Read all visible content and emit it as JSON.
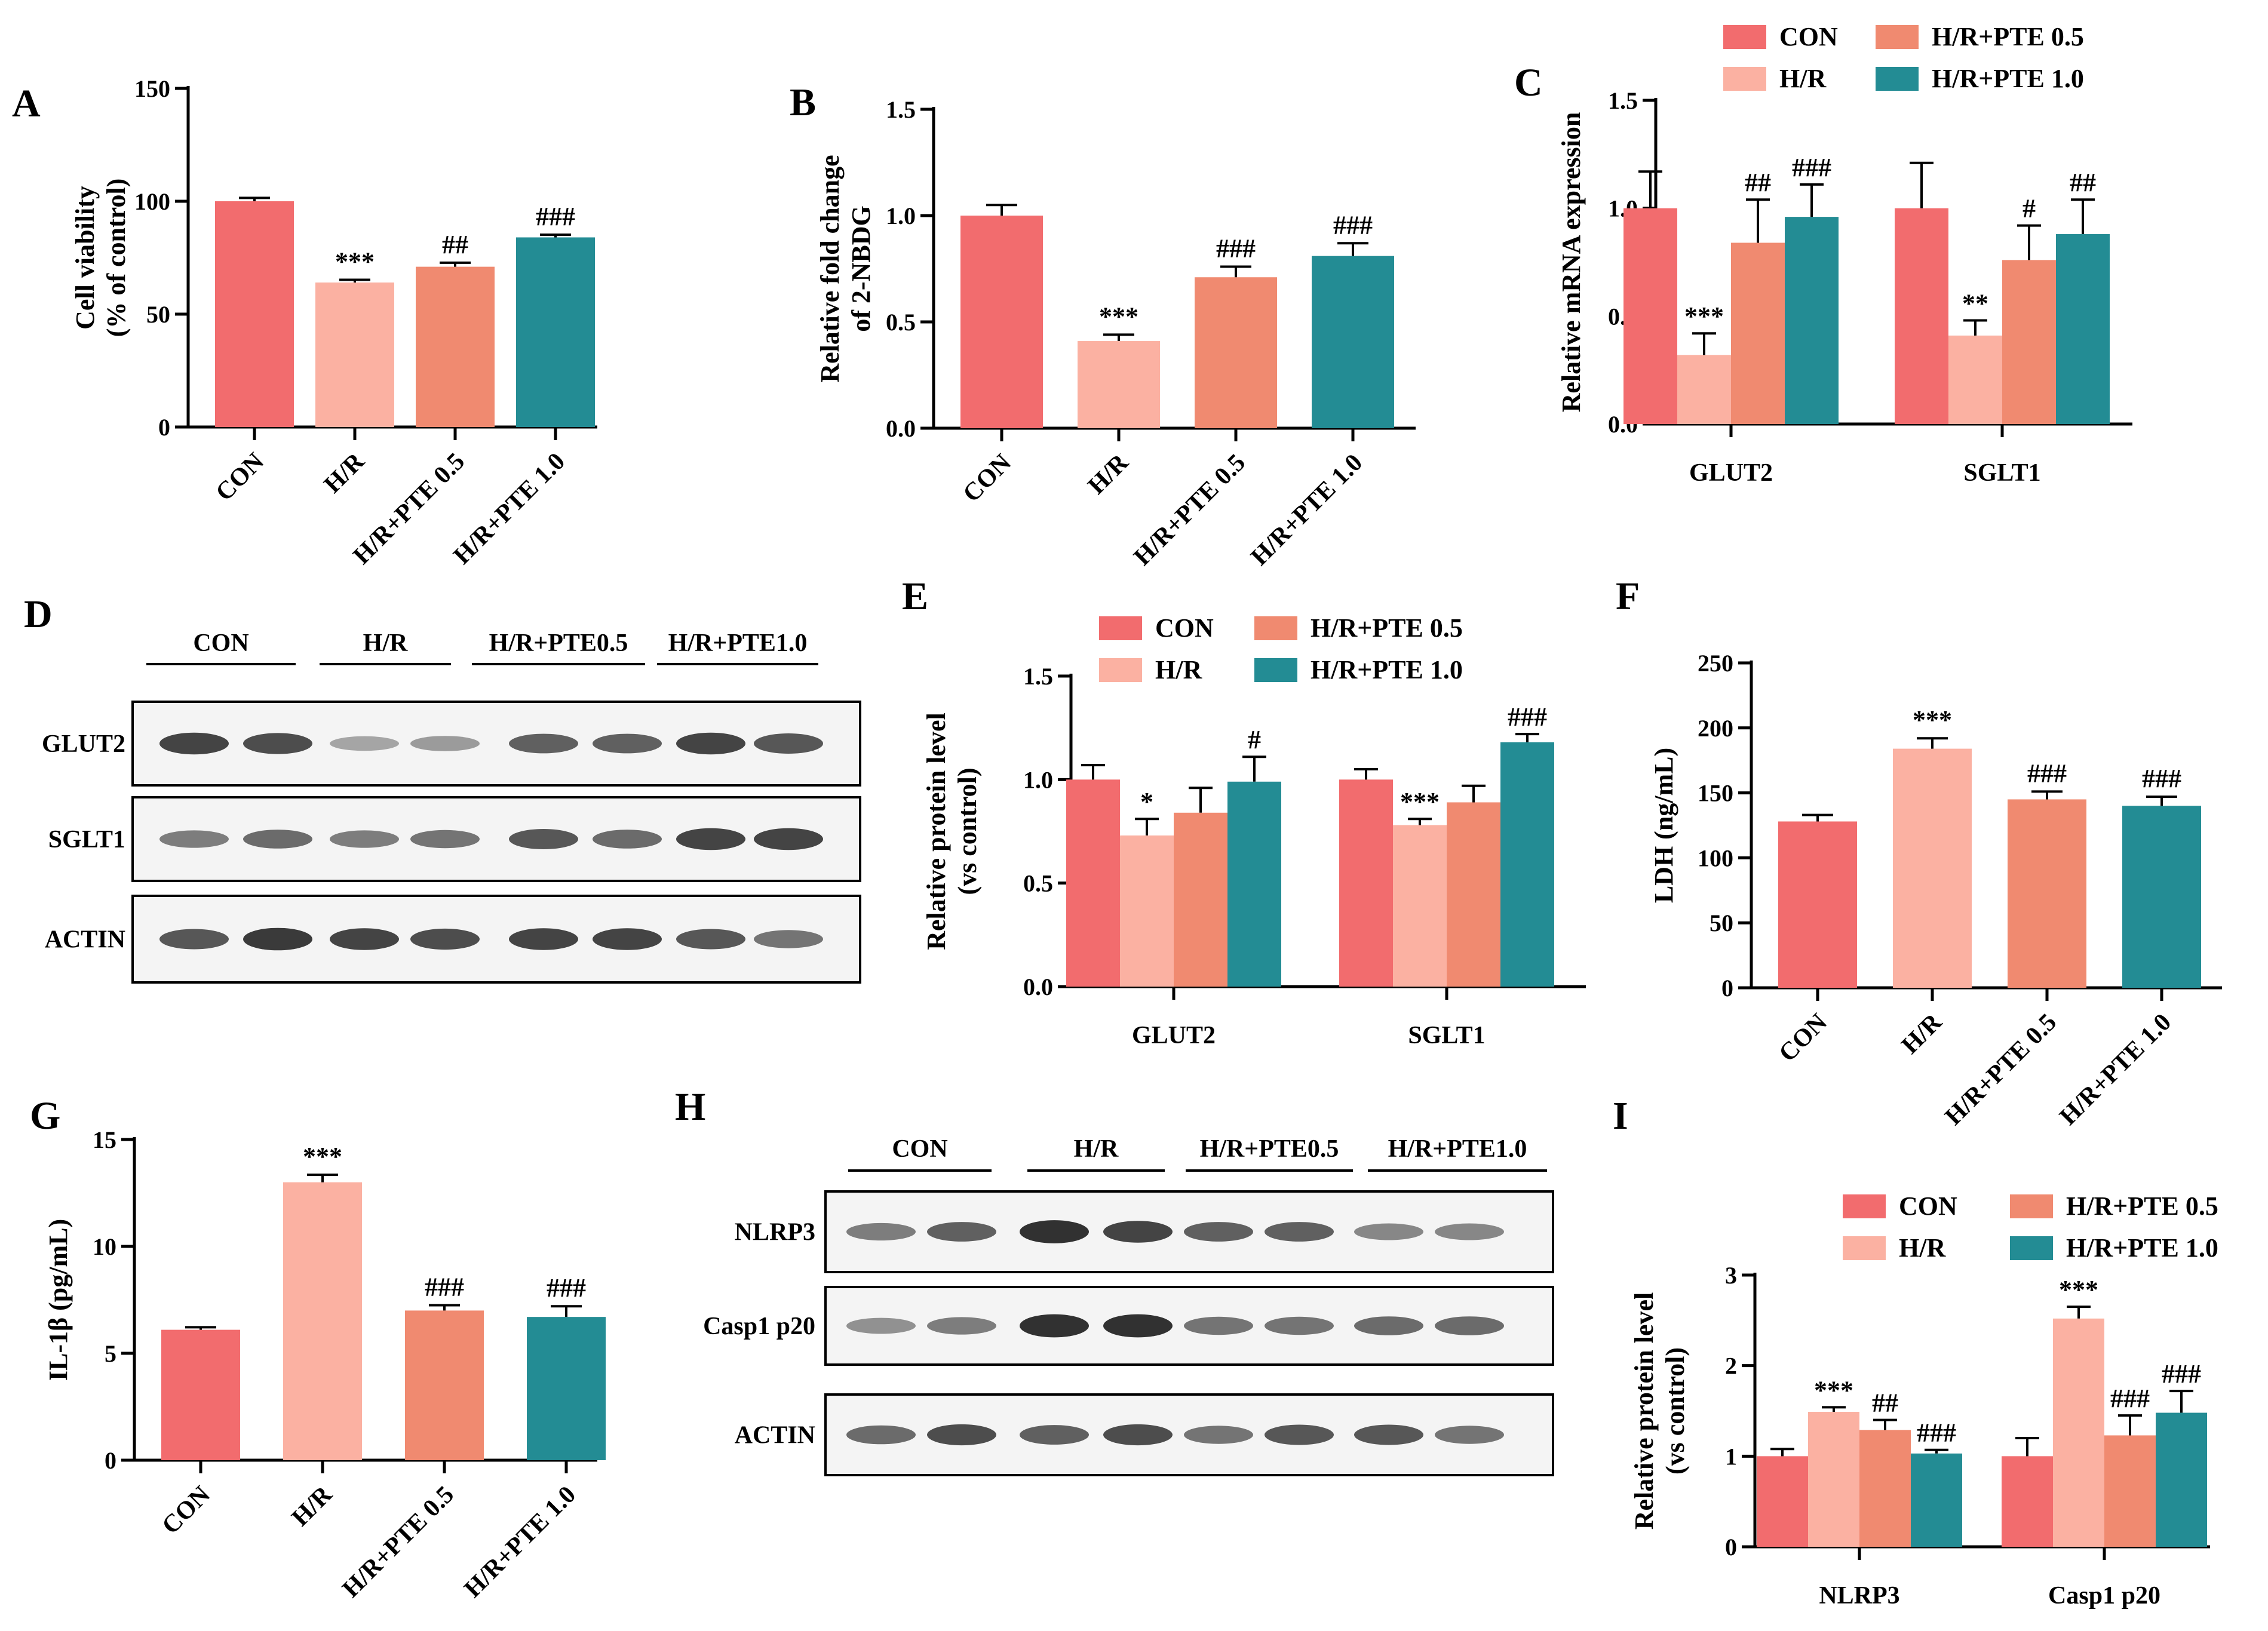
{
  "colors": {
    "CON": "#f26c6e",
    "H/R": "#fbb1a2",
    "H/R+PTE 0.5": "#f08a70",
    "H/R+PTE 1.0": "#238c94"
  },
  "chart_data": [
    {
      "id": "A",
      "type": "bar",
      "panel_label": "A",
      "categories": [
        "CON",
        "H/R",
        "H/R+PTE 0.5",
        "H/R+PTE 1.0"
      ],
      "values": [
        100,
        64,
        71,
        84
      ],
      "errors": [
        1.5,
        1.2,
        1.8,
        1.2
      ],
      "annotations": [
        "",
        "***",
        "##",
        "###"
      ],
      "ylabel_lines": [
        "Cell viability",
        "(% of control)"
      ],
      "ylim": [
        0,
        150
      ],
      "yticks": [
        "0",
        "50",
        "100",
        "150"
      ]
    },
    {
      "id": "B",
      "type": "bar",
      "panel_label": "B",
      "categories": [
        "CON",
        "H/R",
        "H/R+PTE 0.5",
        "H/R+PTE 1.0"
      ],
      "values": [
        1.0,
        0.41,
        0.71,
        0.81
      ],
      "errors": [
        0.05,
        0.03,
        0.05,
        0.06
      ],
      "annotations": [
        "",
        "***",
        "###",
        "###"
      ],
      "ylabel_lines": [
        "Relative fold change",
        "of 2-NBDG"
      ],
      "ylim": [
        0,
        1.5
      ],
      "yticks": [
        "0.0",
        "0.5",
        "1.0",
        "1.5"
      ]
    },
    {
      "id": "C",
      "type": "bar",
      "panel_label": "C",
      "categories": [
        "GLUT2",
        "SGLT1"
      ],
      "series": [
        {
          "name": "CON",
          "values": [
            1.0,
            1.0
          ],
          "errors": [
            0.17,
            0.21
          ],
          "annotations": [
            "",
            ""
          ]
        },
        {
          "name": "H/R",
          "values": [
            0.32,
            0.41
          ],
          "errors": [
            0.1,
            0.07
          ],
          "annotations": [
            "***",
            "**"
          ]
        },
        {
          "name": "H/R+PTE 0.5",
          "values": [
            0.84,
            0.76
          ],
          "errors": [
            0.2,
            0.16
          ],
          "annotations": [
            "##",
            "#"
          ]
        },
        {
          "name": "H/R+PTE 1.0",
          "values": [
            0.96,
            0.88
          ],
          "errors": [
            0.15,
            0.16
          ],
          "annotations": [
            "###",
            "##"
          ]
        }
      ],
      "ylabel_lines": [
        "Relative mRNA expression"
      ],
      "ylim": [
        0,
        1.5
      ],
      "yticks": [
        "0.0",
        "0.5",
        "1.0",
        "1.5"
      ],
      "legend": [
        "CON",
        "H/R",
        "H/R+PTE 0.5",
        "H/R+PTE 1.0"
      ]
    },
    {
      "id": "E",
      "type": "bar",
      "panel_label": "E",
      "categories": [
        "GLUT2",
        "SGLT1"
      ],
      "series": [
        {
          "name": "CON",
          "values": [
            1.0,
            1.0
          ],
          "errors": [
            0.07,
            0.05
          ],
          "annotations": [
            "",
            ""
          ]
        },
        {
          "name": "H/R",
          "values": [
            0.73,
            0.78
          ],
          "errors": [
            0.08,
            0.03
          ],
          "annotations": [
            "*",
            "***"
          ]
        },
        {
          "name": "H/R+PTE 0.5",
          "values": [
            0.84,
            0.89
          ],
          "errors": [
            0.12,
            0.08
          ],
          "annotations": [
            "",
            ""
          ]
        },
        {
          "name": "H/R+PTE 1.0",
          "values": [
            0.99,
            1.18
          ],
          "errors": [
            0.12,
            0.04
          ],
          "annotations": [
            "#",
            "###"
          ]
        }
      ],
      "ylabel_lines": [
        "Relative protein level",
        "(vs control)"
      ],
      "ylim": [
        0,
        1.5
      ],
      "yticks": [
        "0.0",
        "0.5",
        "1.0",
        "1.5"
      ],
      "legend": [
        "CON",
        "H/R",
        "H/R+PTE 0.5",
        "H/R+PTE 1.0"
      ]
    },
    {
      "id": "F",
      "type": "bar",
      "panel_label": "F",
      "categories": [
        "CON",
        "H/R",
        "H/R+PTE 0.5",
        "H/R+PTE 1.0"
      ],
      "values": [
        128,
        184,
        145,
        140
      ],
      "errors": [
        5,
        8,
        6,
        7
      ],
      "annotations": [
        "",
        "***",
        "###",
        "###"
      ],
      "ylabel_lines": [
        "LDH (ng/mL)"
      ],
      "ylim": [
        0,
        250
      ],
      "yticks": [
        "0",
        "50",
        "100",
        "150",
        "200",
        "250"
      ]
    },
    {
      "id": "G",
      "type": "bar",
      "panel_label": "G",
      "categories": [
        "CON",
        "H/R",
        "H/R+PTE 0.5",
        "H/R+PTE 1.0"
      ],
      "values": [
        6.1,
        13.0,
        7.0,
        6.7
      ],
      "errors": [
        0.12,
        0.35,
        0.25,
        0.5
      ],
      "annotations": [
        "",
        "***",
        "###",
        "###"
      ],
      "ylabel_lines": [
        "IL-1β (pg/mL)"
      ],
      "ylim": [
        0,
        15
      ],
      "yticks": [
        "0",
        "5",
        "10",
        "15"
      ]
    },
    {
      "id": "I",
      "type": "bar",
      "panel_label": "I",
      "categories": [
        "NLRP3",
        "Casp1 p20"
      ],
      "series": [
        {
          "name": "CON",
          "values": [
            1.0,
            1.0
          ],
          "errors": [
            0.08,
            0.2
          ],
          "annotations": [
            "",
            ""
          ]
        },
        {
          "name": "H/R",
          "values": [
            1.49,
            2.52
          ],
          "errors": [
            0.05,
            0.13
          ],
          "annotations": [
            "***",
            "***"
          ]
        },
        {
          "name": "H/R+PTE 0.5",
          "values": [
            1.29,
            1.23
          ],
          "errors": [
            0.11,
            0.22
          ],
          "annotations": [
            "##",
            "###"
          ]
        },
        {
          "name": "H/R+PTE 1.0",
          "values": [
            1.03,
            1.48
          ],
          "errors": [
            0.04,
            0.24
          ],
          "annotations": [
            "###",
            "###"
          ]
        }
      ],
      "ylabel_lines": [
        "Relative protein level",
        "(vs control)"
      ],
      "ylim": [
        0,
        3
      ],
      "yticks": [
        "0",
        "1",
        "2",
        "3"
      ],
      "legend": [
        "CON",
        "H/R",
        "H/R+PTE 0.5",
        "H/R+PTE 1.0"
      ]
    }
  ],
  "blots": [
    {
      "id": "D",
      "panel_label": "D",
      "groups": [
        "CON",
        "H/R",
        "H/R+PTE0.5",
        "H/R+PTE1.0"
      ],
      "rows": [
        {
          "label": "GLUT2",
          "intensity": [
            0.85,
            0.8,
            0.35,
            0.4,
            0.7,
            0.7,
            0.85,
            0.75
          ]
        },
        {
          "label": "SGLT1",
          "intensity": [
            0.55,
            0.65,
            0.55,
            0.6,
            0.75,
            0.65,
            0.85,
            0.85
          ]
        },
        {
          "label": "ACTIN",
          "intensity": [
            0.75,
            0.9,
            0.85,
            0.8,
            0.85,
            0.85,
            0.75,
            0.6
          ]
        }
      ]
    },
    {
      "id": "H",
      "panel_label": "H",
      "groups": [
        "CON",
        "H/R",
        "H/R+PTE0.5",
        "H/R+PTE1.0"
      ],
      "rows": [
        {
          "label": "NLRP3",
          "intensity": [
            0.55,
            0.7,
            0.95,
            0.85,
            0.7,
            0.7,
            0.5,
            0.5
          ]
        },
        {
          "label": "Casp1 p20",
          "intensity": [
            0.45,
            0.55,
            0.95,
            0.95,
            0.6,
            0.6,
            0.65,
            0.65
          ]
        },
        {
          "label": "ACTIN",
          "intensity": [
            0.65,
            0.8,
            0.7,
            0.8,
            0.6,
            0.75,
            0.75,
            0.6
          ]
        }
      ]
    }
  ]
}
